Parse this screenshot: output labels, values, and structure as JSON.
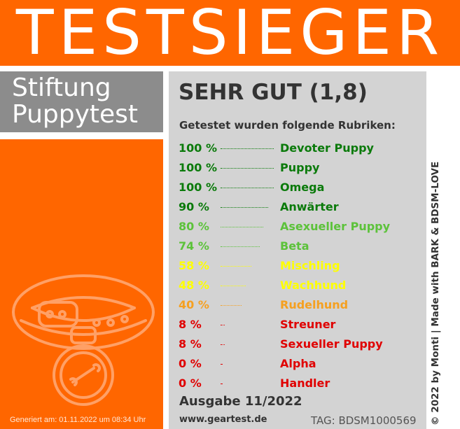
{
  "header": {
    "title": "TESTSIEGER"
  },
  "brand": {
    "line1": "Stiftung",
    "line2": "Puppytest"
  },
  "result": {
    "rating": "SEHR GUT (1,8)",
    "subtitle": "Getestet wurden folgende Rubriken:",
    "rows": [
      {
        "percent": "100 %",
        "category": "Devoter Puppy",
        "value": 100,
        "color": "#0a7a0a"
      },
      {
        "percent": "100 %",
        "category": "Puppy",
        "value": 100,
        "color": "#0a7a0a"
      },
      {
        "percent": "100 %",
        "category": "Omega",
        "value": 100,
        "color": "#0a7a0a"
      },
      {
        "percent": "90 %",
        "category": "Anwärter",
        "value": 90,
        "color": "#0a7a0a"
      },
      {
        "percent": "80 %",
        "category": "Asexueller Puppy",
        "value": 80,
        "color": "#5cc23a"
      },
      {
        "percent": "74 %",
        "category": "Beta",
        "value": 74,
        "color": "#5cc23a"
      },
      {
        "percent": "58 %",
        "category": "Mischling",
        "value": 58,
        "color": "#ffff00"
      },
      {
        "percent": "48 %",
        "category": "Wachhund",
        "value": 48,
        "color": "#ffff00"
      },
      {
        "percent": "40 %",
        "category": "Rudelhund",
        "value": 40,
        "color": "#f5a020"
      },
      {
        "percent": "8 %",
        "category": "Streuner",
        "value": 8,
        "color": "#e00000"
      },
      {
        "percent": "8 %",
        "category": "Sexueller Puppy",
        "value": 8,
        "color": "#e00000"
      },
      {
        "percent": "0 %",
        "category": "Alpha",
        "value": 0,
        "color": "#e00000"
      },
      {
        "percent": "0 %",
        "category": "Handler",
        "value": 0,
        "color": "#e00000"
      }
    ]
  },
  "footer": {
    "edition": "Ausgabe 11/2022",
    "website": "www.geartest.de",
    "tag": "TAG: BDSM1000569",
    "generated": "Generiert am: 01.11.2022 um 08:34 Uhr",
    "credit": "© 2022 by Monti | Made with BARK & BDSM-LOVE"
  },
  "colors": {
    "orange": "#ff6600",
    "grey_box": "#8c8c8c",
    "panel": "#d3d3d3",
    "text": "#333333"
  },
  "icons": {
    "badge": "dog-collar-icon"
  }
}
